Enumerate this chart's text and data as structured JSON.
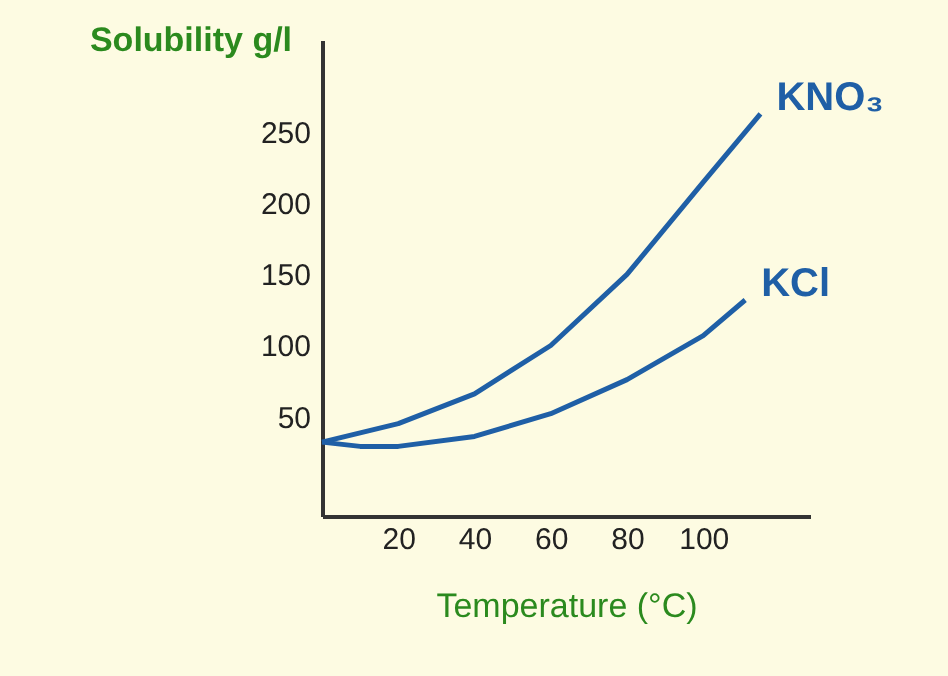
{
  "chart_data": {
    "type": "line",
    "xlabel": "Temperature (°C)",
    "ylabel": "Solubility g/l",
    "xlim": [
      0,
      128
    ],
    "ylim": [
      -20,
      315
    ],
    "xticks": [
      20,
      40,
      60,
      80,
      100
    ],
    "yticks": [
      50,
      100,
      150,
      200,
      250
    ],
    "grid": false,
    "legend": false,
    "marker": "none",
    "line_style": "solid",
    "series": [
      {
        "name": "KNO₃",
        "color": "#1f5fa6",
        "x": [
          0,
          20,
          40,
          60,
          80,
          100,
          115
        ],
        "values": [
          32,
          45,
          66,
          100,
          150,
          215,
          263
        ]
      },
      {
        "name": "KCl",
        "color": "#1f5fa6",
        "x": [
          0,
          10,
          20,
          40,
          60,
          80,
          100,
          111
        ],
        "values": [
          32,
          29,
          29,
          36,
          52,
          76,
          107,
          132
        ]
      }
    ]
  }
}
